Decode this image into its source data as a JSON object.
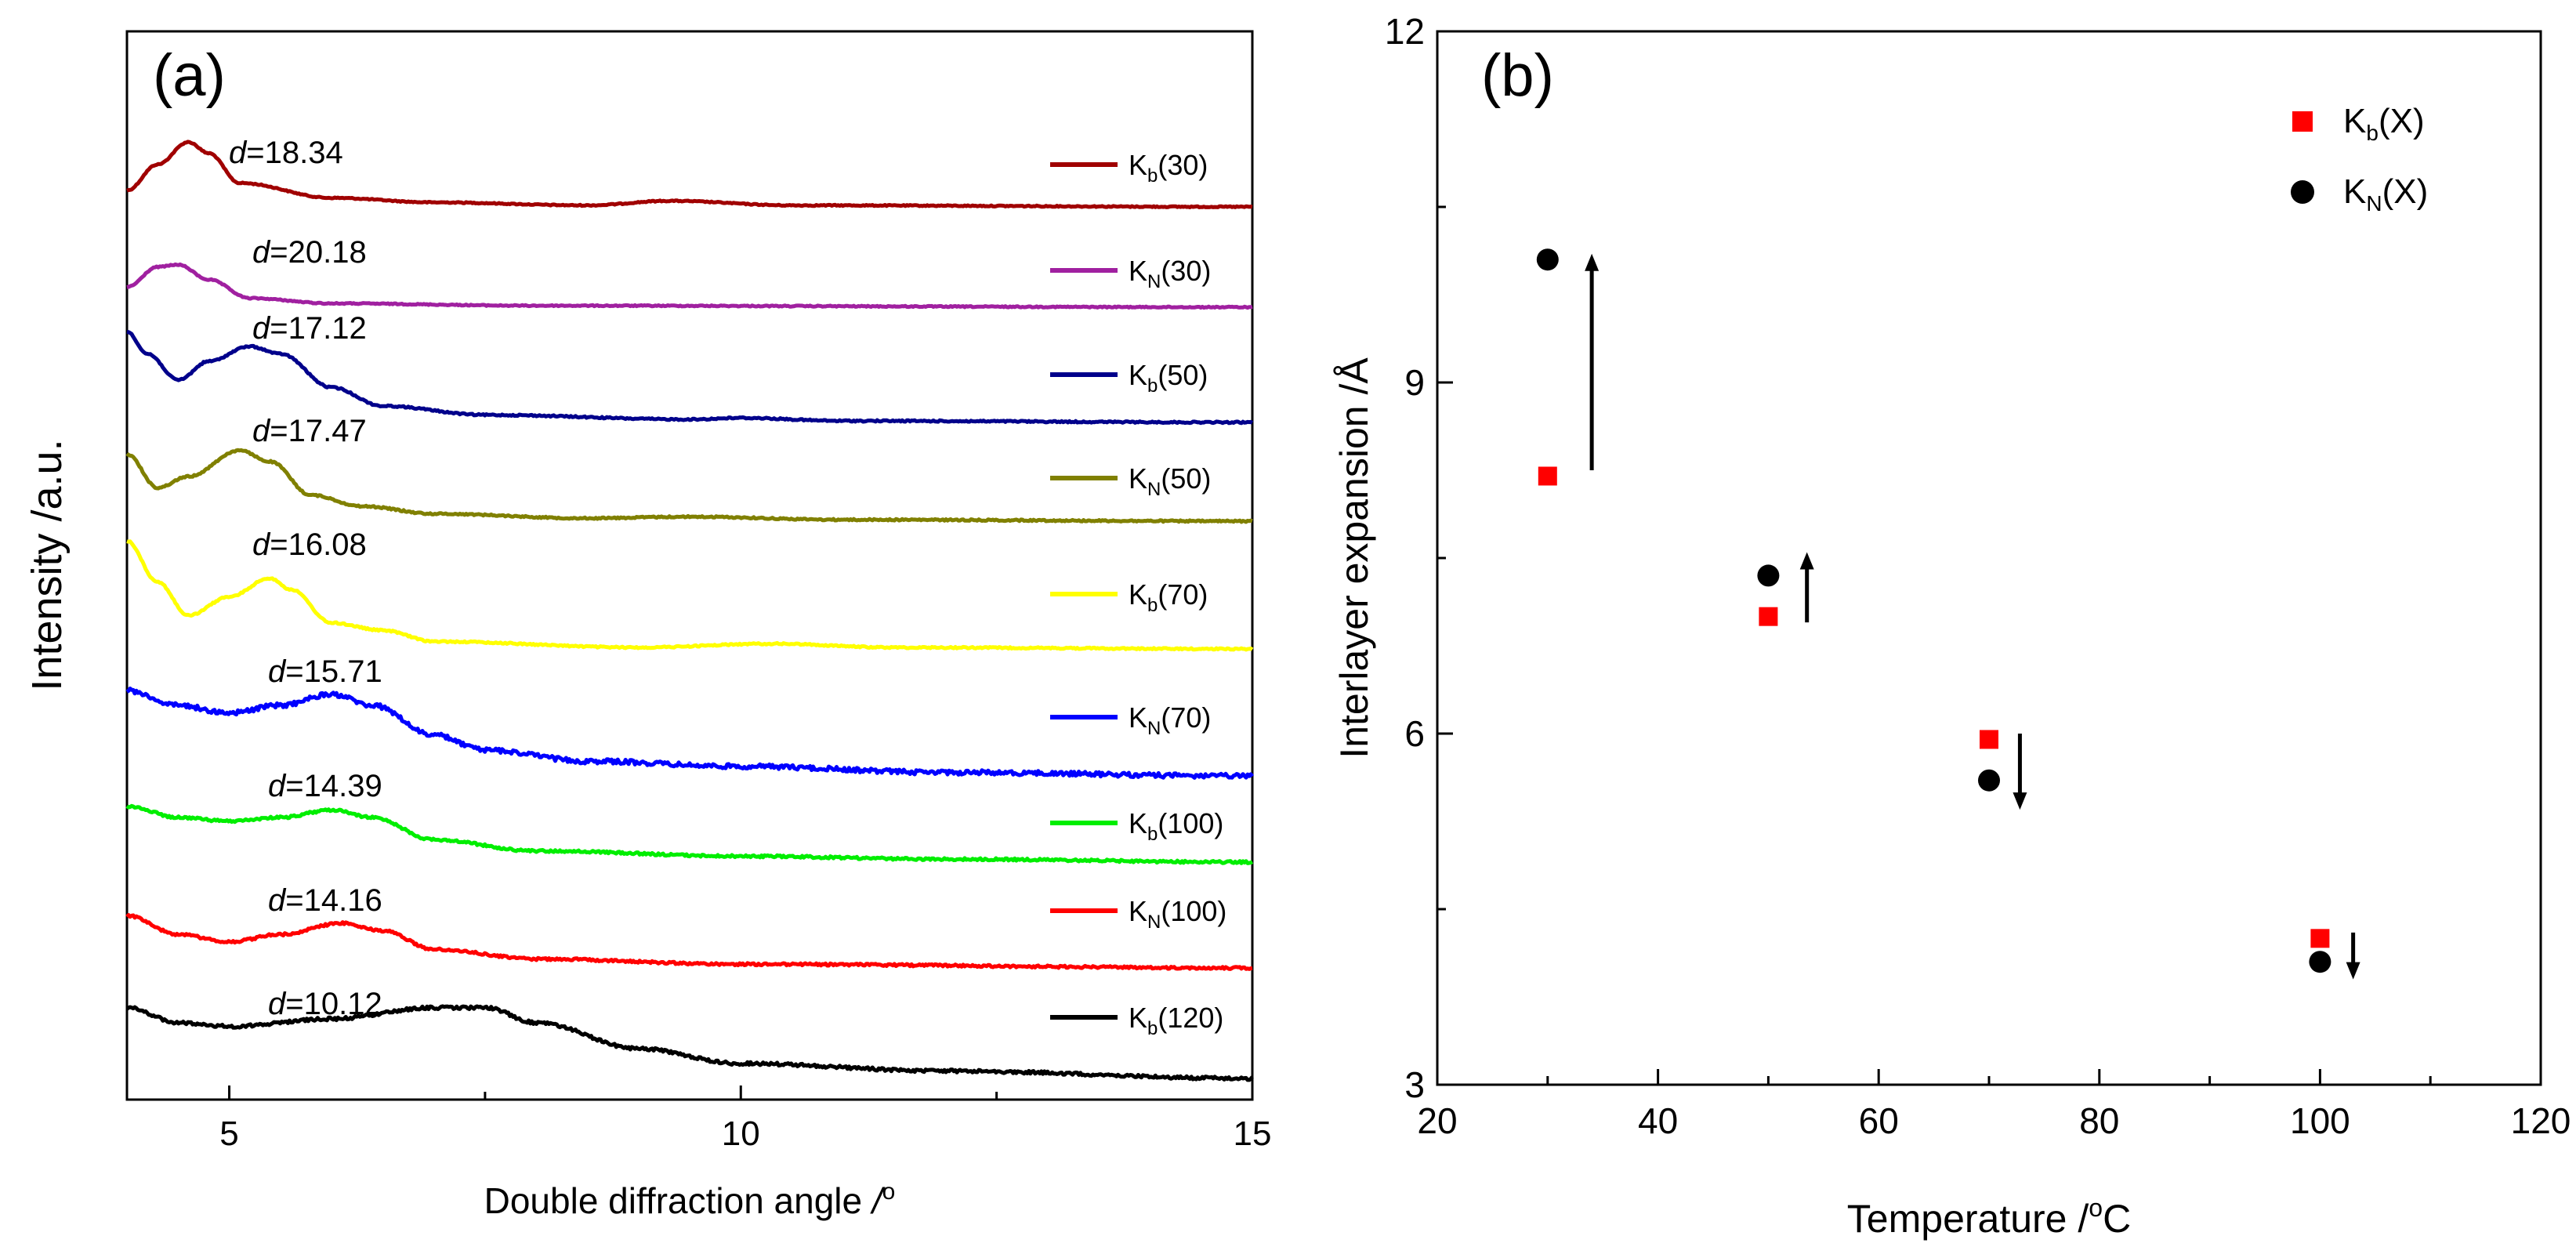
{
  "chart_data": [
    {
      "type": "line",
      "panel_label": "(a)",
      "xlabel": "Double diffraction angle",
      "xlabel_unit": "/",
      "xlabel_unit_sup": "o",
      "ylabel": "Intensity /a.u.",
      "xlim": [
        4,
        15
      ],
      "xticks": [
        {
          "value": 5,
          "label": "5"
        },
        {
          "value": 10,
          "label": "10"
        },
        {
          "value": 15,
          "label": "15"
        }
      ],
      "x_minor_ticks": [
        7.5,
        12.5
      ],
      "d_prefix": "d",
      "series": [
        {
          "base": "K",
          "sub": "b",
          "suffix": "(30)",
          "color": "#a00000",
          "d_value": "=18.34",
          "noise": 0.3,
          "points": [
            [
              4,
              0.2
            ],
            [
              4.3,
              0.55
            ],
            [
              4.6,
              0.85
            ],
            [
              4.8,
              0.7
            ],
            [
              5.1,
              0.3
            ],
            [
              6,
              0.1
            ],
            [
              7,
              0.04
            ],
            [
              8.5,
              0.0
            ],
            [
              9.3,
              0.06
            ],
            [
              10.5,
              0.0
            ],
            [
              15,
              -0.02
            ]
          ]
        },
        {
          "base": "K",
          "sub": "N",
          "suffix": "(30)",
          "color": "#a020a0",
          "d_value": "=20.18",
          "noise": 0.3,
          "points": [
            [
              4,
              0.25
            ],
            [
              4.3,
              0.52
            ],
            [
              4.5,
              0.55
            ],
            [
              4.8,
              0.35
            ],
            [
              5.2,
              0.1
            ],
            [
              6,
              0.03
            ],
            [
              8,
              0.0
            ],
            [
              15,
              -0.02
            ]
          ]
        },
        {
          "base": "K",
          "sub": "b",
          "suffix": "(50)",
          "color": "#00008b",
          "d_value": "=17.12",
          "noise": 0.4,
          "points": [
            [
              4,
              1.2
            ],
            [
              4.2,
              0.9
            ],
            [
              4.5,
              0.55
            ],
            [
              4.8,
              0.8
            ],
            [
              5.2,
              1.0
            ],
            [
              5.5,
              0.9
            ],
            [
              6,
              0.45
            ],
            [
              6.5,
              0.2
            ],
            [
              7.5,
              0.08
            ],
            [
              9.5,
              0.02
            ],
            [
              10,
              0.04
            ],
            [
              11,
              0.0
            ],
            [
              15,
              -0.02
            ]
          ]
        },
        {
          "base": "K",
          "sub": "N",
          "suffix": "(50)",
          "color": "#808000",
          "d_value": "=17.47",
          "noise": 0.4,
          "points": [
            [
              4,
              0.9
            ],
            [
              4.3,
              0.45
            ],
            [
              4.6,
              0.6
            ],
            [
              5.1,
              0.95
            ],
            [
              5.4,
              0.8
            ],
            [
              5.8,
              0.35
            ],
            [
              6.3,
              0.2
            ],
            [
              7,
              0.1
            ],
            [
              8.5,
              0.04
            ],
            [
              9.5,
              0.06
            ],
            [
              11,
              0.02
            ],
            [
              15,
              0.0
            ]
          ]
        },
        {
          "base": "K",
          "sub": "b",
          "suffix": "(70)",
          "color": "#ffff00",
          "d_value": "=16.08",
          "noise": 0.4,
          "points": [
            [
              4,
              1.45
            ],
            [
              4.3,
              0.9
            ],
            [
              4.6,
              0.45
            ],
            [
              5,
              0.7
            ],
            [
              5.4,
              0.95
            ],
            [
              5.6,
              0.8
            ],
            [
              6,
              0.35
            ],
            [
              6.5,
              0.25
            ],
            [
              7,
              0.1
            ],
            [
              9,
              0.02
            ],
            [
              10.3,
              0.07
            ],
            [
              11.5,
              0.02
            ],
            [
              15,
              0.0
            ]
          ]
        },
        {
          "base": "K",
          "sub": "N",
          "suffix": "(70)",
          "color": "#0000ff",
          "d_value": "=15.71",
          "noise": 1.2,
          "points": [
            [
              4,
              1.2
            ],
            [
              4.5,
              1.0
            ],
            [
              5,
              0.9
            ],
            [
              5.5,
              1.0
            ],
            [
              6,
              1.15
            ],
            [
              6.4,
              1.0
            ],
            [
              7,
              0.6
            ],
            [
              7.5,
              0.4
            ],
            [
              8.5,
              0.25
            ],
            [
              10,
              0.18
            ],
            [
              12,
              0.1
            ],
            [
              15,
              0.05
            ]
          ]
        },
        {
          "base": "K",
          "sub": "b",
          "suffix": "(100)",
          "color": "#00ee00",
          "d_value": "=14.39",
          "noise": 0.6,
          "points": [
            [
              4,
              0.75
            ],
            [
              4.5,
              0.6
            ],
            [
              5,
              0.55
            ],
            [
              5.5,
              0.6
            ],
            [
              6,
              0.7
            ],
            [
              6.4,
              0.6
            ],
            [
              7,
              0.3
            ],
            [
              8,
              0.15
            ],
            [
              10,
              0.08
            ],
            [
              12,
              0.04
            ],
            [
              15,
              0.0
            ]
          ]
        },
        {
          "base": "K",
          "sub": "N",
          "suffix": "(100)",
          "color": "#ff0000",
          "d_value": "=14.16",
          "noise": 0.6,
          "points": [
            [
              4,
              0.7
            ],
            [
              4.5,
              0.45
            ],
            [
              5,
              0.35
            ],
            [
              5.5,
              0.45
            ],
            [
              6.1,
              0.6
            ],
            [
              6.5,
              0.5
            ],
            [
              7,
              0.25
            ],
            [
              8,
              0.12
            ],
            [
              10,
              0.05
            ],
            [
              15,
              0.0
            ]
          ]
        },
        {
          "base": "K",
          "sub": "b",
          "suffix": "(120)",
          "color": "#000000",
          "d_value": "=10.12",
          "noise": 0.8,
          "points": [
            [
              4,
              0.95
            ],
            [
              4.5,
              0.75
            ],
            [
              5,
              0.7
            ],
            [
              6,
              0.8
            ],
            [
              7,
              0.95
            ],
            [
              7.5,
              0.95
            ],
            [
              8,
              0.75
            ],
            [
              9,
              0.4
            ],
            [
              10,
              0.2
            ],
            [
              12,
              0.1
            ],
            [
              15,
              0.0
            ]
          ]
        }
      ]
    },
    {
      "type": "scatter",
      "panel_label": "(b)",
      "xlabel": "Temperature /",
      "xlabel_unit_sup": "o",
      "xlabel_unit": "C",
      "ylabel": "Interlayer expansion /Å",
      "xlim": [
        20,
        120
      ],
      "ylim": [
        3,
        12
      ],
      "xticks": [
        20,
        40,
        60,
        80,
        100,
        120
      ],
      "yticks": [
        3,
        6,
        9,
        12
      ],
      "x_minor_ticks": [
        30,
        50,
        70,
        90,
        110
      ],
      "y_minor_ticks": [
        4.5,
        7.5,
        10.5
      ],
      "series": [
        {
          "base": "K",
          "sub": "b",
          "suffix": "(X)",
          "marker": "square",
          "color": "#ff0000",
          "x": [
            30,
            50,
            70,
            100
          ],
          "y": [
            8.2,
            7.0,
            5.95,
            4.25
          ]
        },
        {
          "base": "K",
          "sub": "N",
          "suffix": "(X)",
          "marker": "circle",
          "color": "#000000",
          "x": [
            30,
            50,
            70,
            100
          ],
          "y": [
            10.05,
            7.35,
            5.6,
            4.05
          ]
        }
      ],
      "arrows": [
        {
          "x": 34,
          "y_from": 8.25,
          "y_to": 10.1
        },
        {
          "x": 53.5,
          "y_from": 6.95,
          "y_to": 7.55
        },
        {
          "x": 72.8,
          "y_from": 6.0,
          "y_to": 5.35
        },
        {
          "x": 103,
          "y_from": 4.3,
          "y_to": 3.9
        }
      ]
    }
  ]
}
